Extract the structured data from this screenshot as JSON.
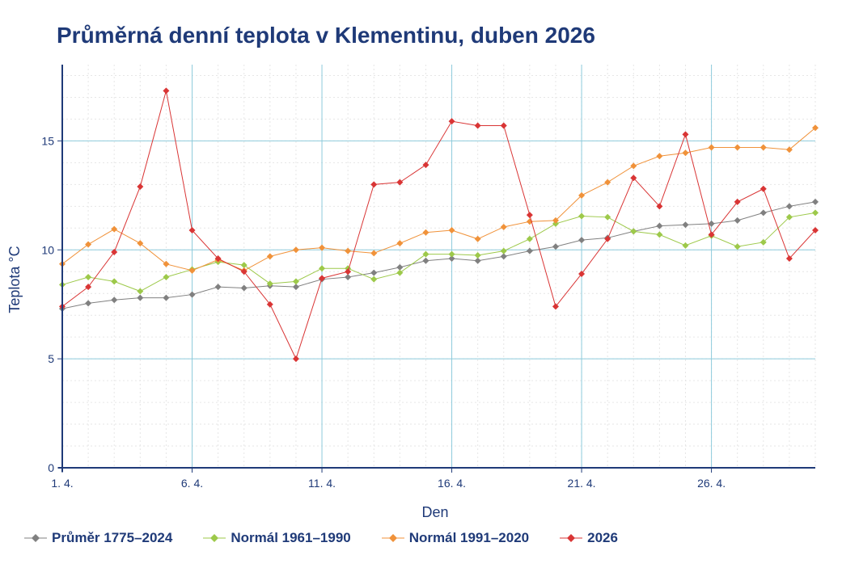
{
  "chart_data": {
    "type": "line",
    "title": "Průměrná denní teplota v Klementinu, duben 2026",
    "xlabel": "Den",
    "ylabel": "Teplota  °C",
    "x": [
      1,
      2,
      3,
      4,
      5,
      6,
      7,
      8,
      9,
      10,
      11,
      12,
      13,
      14,
      15,
      16,
      17,
      18,
      19,
      20,
      21,
      22,
      23,
      24,
      25,
      26,
      27,
      28,
      29,
      30
    ],
    "x_ticks": [
      {
        "day": 1,
        "label": "1. 4."
      },
      {
        "day": 6,
        "label": "6. 4."
      },
      {
        "day": 11,
        "label": "11. 4."
      },
      {
        "day": 16,
        "label": "16. 4."
      },
      {
        "day": 21,
        "label": "21. 4."
      },
      {
        "day": 26,
        "label": "26. 4."
      }
    ],
    "y_ticks": [
      0,
      5,
      10,
      15
    ],
    "xlim": [
      1,
      30
    ],
    "ylim": [
      0,
      18.5
    ],
    "grid": true,
    "legend_position": "bottom",
    "series": [
      {
        "name": "Průměr 1775–2024",
        "color": "#808080",
        "values": [
          7.3,
          7.55,
          7.7,
          7.8,
          7.8,
          7.95,
          8.3,
          8.25,
          8.35,
          8.3,
          8.65,
          8.75,
          8.95,
          9.2,
          9.5,
          9.6,
          9.5,
          9.7,
          9.95,
          10.15,
          10.45,
          10.55,
          10.85,
          11.1,
          11.15,
          11.2,
          11.35,
          11.7,
          12.0,
          12.2
        ]
      },
      {
        "name": "Normál 1961–1990",
        "color": "#9dc94a",
        "values": [
          8.4,
          8.75,
          8.55,
          8.1,
          8.75,
          9.1,
          9.45,
          9.3,
          8.45,
          8.55,
          9.15,
          9.15,
          8.65,
          8.95,
          9.8,
          9.8,
          9.75,
          9.95,
          10.5,
          11.2,
          11.55,
          11.5,
          10.85,
          10.7,
          10.2,
          10.65,
          10.15,
          10.35,
          11.5,
          11.7
        ]
      },
      {
        "name": "Normál 1991–2020",
        "color": "#f0923a",
        "values": [
          9.35,
          10.25,
          10.95,
          10.3,
          9.35,
          9.05,
          9.55,
          9.05,
          9.7,
          10.0,
          10.1,
          9.95,
          9.85,
          10.3,
          10.8,
          10.9,
          10.5,
          11.05,
          11.3,
          11.35,
          12.5,
          13.1,
          13.85,
          14.3,
          14.45,
          14.7,
          14.7,
          14.7,
          14.6,
          15.6
        ]
      },
      {
        "name": "2026",
        "color": "#d93535",
        "values": [
          7.4,
          8.3,
          9.9,
          12.9,
          17.3,
          10.9,
          9.6,
          9.0,
          7.5,
          5.0,
          8.7,
          9.0,
          13.0,
          13.1,
          13.9,
          15.9,
          15.7,
          15.7,
          11.6,
          7.4,
          8.9,
          10.5,
          13.3,
          12.0,
          15.3,
          10.7,
          12.2,
          12.8,
          9.6,
          10.9
        ]
      }
    ]
  }
}
